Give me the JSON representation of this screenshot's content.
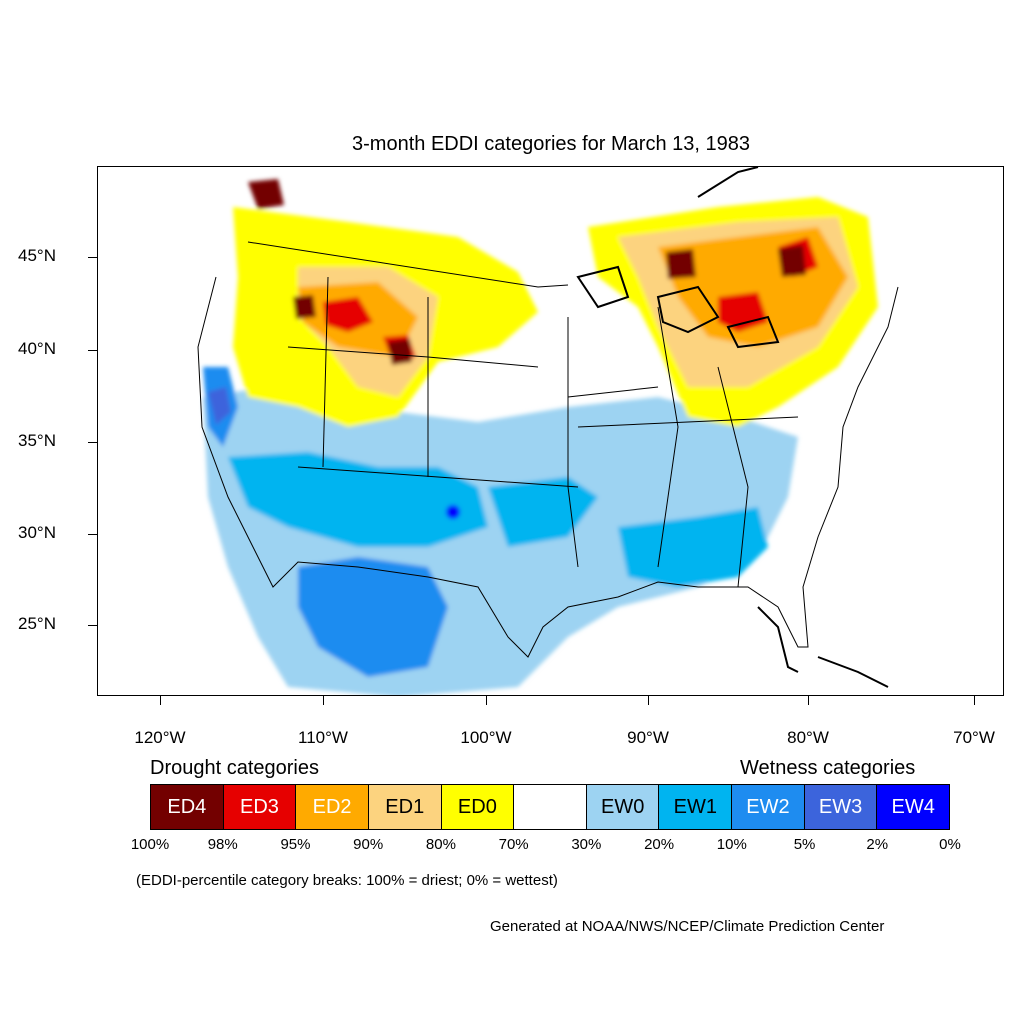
{
  "title": "3-month EDDI categories for March 13, 1983",
  "lat_labels": [
    "45°N",
    "40°N",
    "35°N",
    "30°N",
    "25°N"
  ],
  "lon_labels": [
    "120°W",
    "110°W",
    "100°W",
    "90°W",
    "80°W",
    "70°W"
  ],
  "legend": {
    "drought_heading": "Drought categories",
    "wetness_heading": "Wetness categories",
    "categories": [
      {
        "label": "ED4",
        "color": "#730000",
        "text_color": "#ffffff"
      },
      {
        "label": "ED3",
        "color": "#e60000",
        "text_color": "#ffffff"
      },
      {
        "label": "ED2",
        "color": "#ffaa00",
        "text_color": "#ffffff"
      },
      {
        "label": "ED1",
        "color": "#fcd37f",
        "text_color": "#000000"
      },
      {
        "label": "ED0",
        "color": "#ffff00",
        "text_color": "#000000"
      },
      {
        "label": "",
        "color": "#ffffff",
        "text_color": "#000000"
      },
      {
        "label": "EW0",
        "color": "#9dd3f2",
        "text_color": "#000000"
      },
      {
        "label": "EW1",
        "color": "#00b4f0",
        "text_color": "#000000"
      },
      {
        "label": "EW2",
        "color": "#1e8cf0",
        "text_color": "#ffffff"
      },
      {
        "label": "EW3",
        "color": "#3c64dc",
        "text_color": "#ffffff"
      },
      {
        "label": "EW4",
        "color": "#0000ff",
        "text_color": "#ffffff"
      }
    ],
    "percentiles": [
      "100%",
      "98%",
      "95%",
      "90%",
      "80%",
      "70%",
      "30%",
      "20%",
      "10%",
      "5%",
      "2%",
      "0%"
    ]
  },
  "note": "(EDDI-percentile category breaks: 100% = driest; 0% = wettest)",
  "credit": "Generated at NOAA/NWS/NCEP/Climate Prediction Center"
}
